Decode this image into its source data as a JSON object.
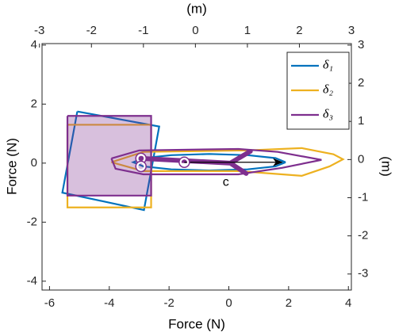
{
  "chart_data": {
    "type": "line",
    "xlabel": "Force (N)",
    "ylabel": "Force (N)",
    "x2label": "(m)",
    "y2label": "(m)",
    "xlim": [
      -6.25,
      4.1
    ],
    "ylim": [
      -4.3,
      4.05
    ],
    "x2lim": [
      -2.95,
      3.0
    ],
    "y2lim": [
      -3.42,
      3.04
    ],
    "xticks": [
      -6,
      -4,
      -2,
      0,
      2,
      4
    ],
    "yticks": [
      -4,
      -2,
      0,
      2,
      4
    ],
    "x2ticks": [
      -3,
      -2,
      -1,
      0,
      1,
      2,
      3
    ],
    "y2ticks": [
      -3,
      -2,
      -1,
      0,
      1,
      2,
      3
    ],
    "series": [
      {
        "name": "δ₁",
        "color": "#0072BD",
        "shapes": [
          {
            "x": [
              -5.07,
              -2.33,
              -2.84,
              -5.57,
              -5.07
            ],
            "y": [
              1.75,
              1.24,
              -1.59,
              -1.0,
              1.75
            ]
          },
          {
            "x": [
              1.9,
              1.56,
              0.63,
              -0.65,
              -1.93,
              -2.86,
              -3.2,
              -2.86,
              -1.93,
              -0.65,
              0.63,
              1.56,
              1.9
            ],
            "y": [
              0.03,
              0.17,
              0.27,
              0.31,
              0.27,
              0.17,
              0.03,
              -0.11,
              -0.21,
              -0.25,
              -0.21,
              -0.11,
              0.03
            ]
          }
        ]
      },
      {
        "name": "δ₂",
        "color": "#EDB120",
        "shapes": [
          {
            "x": [
              -5.4,
              -2.6,
              -2.6,
              -5.4,
              -5.4
            ],
            "y": [
              1.3,
              1.3,
              -1.5,
              -1.5,
              1.3
            ]
          },
          {
            "x": [
              -3.93,
              -2.86,
              0.58,
              2.44,
              3.5,
              3.82,
              3.37,
              2.44,
              0.32,
              -2.86,
              -3.93
            ],
            "y": [
              0.03,
              0.38,
              0.43,
              0.51,
              0.3,
              0.13,
              -0.11,
              -0.43,
              -0.27,
              -0.27,
              0.03
            ]
          }
        ]
      },
      {
        "name": "δ₃",
        "color": "#7E2F8E",
        "shapes": [
          {
            "x": [
              -5.4,
              -2.6,
              -2.6,
              -5.4,
              -5.4
            ],
            "y": [
              1.6,
              1.6,
              -1.1,
              -1.1,
              1.6
            ],
            "fill": true
          },
          {
            "x": [
              -3.93,
              -3.0,
              0.32,
              1.64,
              3.1,
              1.78,
              0.32,
              -2.86,
              -3.79,
              -3.93
            ],
            "y": [
              0.16,
              0.43,
              0.48,
              0.38,
              0.11,
              -0.16,
              -0.38,
              -0.38,
              -0.19,
              0.16
            ]
          }
        ]
      }
    ],
    "force_path": {
      "color": "#7E2F8E",
      "x": [
        -2.94,
        0.05,
        0.72,
        null,
        0.05,
        0.58
      ],
      "y": [
        0.16,
        0.0,
        0.4,
        null,
        0.0,
        -0.35
      ]
    },
    "markers": {
      "color": "#7E2F8E",
      "x": [
        -2.94,
        -2.94,
        -1.49
      ],
      "y": [
        0.16,
        -0.11,
        0.03
      ]
    },
    "arrow": {
      "color": "#000000",
      "x": [
        -1.49,
        1.78
      ],
      "y": [
        0.03,
        0.03
      ]
    },
    "annotation": {
      "text": "c",
      "x": -0.1,
      "y": -0.66
    },
    "legend": "top-right"
  }
}
